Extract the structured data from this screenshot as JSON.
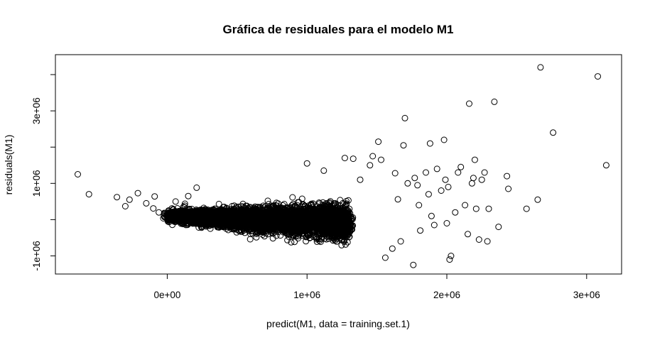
{
  "chart_data": {
    "type": "scatter",
    "title": "Gráfica de residuales para el modelo M1",
    "xlabel": "predict(M1, data = training.set.1)",
    "ylabel": "residuals(M1)",
    "xlim": [
      -800000,
      3250000
    ],
    "ylim": [
      -1500000,
      4550000
    ],
    "x_ticks": [
      {
        "value": 0,
        "label": "0e+00"
      },
      {
        "value": 1000000,
        "label": "1e+06"
      },
      {
        "value": 2000000,
        "label": "2e+06"
      },
      {
        "value": 3000000,
        "label": "3e+06"
      }
    ],
    "y_ticks": [
      {
        "value": -1000000,
        "label": "-1e+06"
      },
      {
        "value": 1000000,
        "label": "1e+06"
      },
      {
        "value": 3000000,
        "label": "3e+06"
      }
    ],
    "y_minor_ticks": [
      0,
      2000000,
      4000000
    ],
    "grid": false,
    "legend": "none",
    "series": [
      {
        "marker": "open-circle",
        "dense_band": {
          "x_start": 0,
          "x_end": 1300000,
          "y_center_start": 100000,
          "y_center_end": -80000,
          "y_spread_start": 140000,
          "y_spread_end": 450000,
          "approx_count": 6000
        },
        "points": [
          {
            "x": -640000,
            "y": 1250000
          },
          {
            "x": -560000,
            "y": 700000
          },
          {
            "x": -360000,
            "y": 620000
          },
          {
            "x": -300000,
            "y": 370000
          },
          {
            "x": -270000,
            "y": 550000
          },
          {
            "x": -210000,
            "y": 730000
          },
          {
            "x": -150000,
            "y": 450000
          },
          {
            "x": -100000,
            "y": 310000
          },
          {
            "x": -90000,
            "y": 640000
          },
          {
            "x": -60000,
            "y": 200000
          },
          {
            "x": 60000,
            "y": 500000
          },
          {
            "x": 150000,
            "y": 650000
          },
          {
            "x": 210000,
            "y": 880000
          },
          {
            "x": 1000000,
            "y": 1550000
          },
          {
            "x": 1120000,
            "y": 1350000
          },
          {
            "x": 1270000,
            "y": 1700000
          },
          {
            "x": 1330000,
            "y": 1680000
          },
          {
            "x": 1380000,
            "y": 1100000
          },
          {
            "x": 1450000,
            "y": 1500000
          },
          {
            "x": 1470000,
            "y": 1750000
          },
          {
            "x": 1510000,
            "y": 2150000
          },
          {
            "x": 1530000,
            "y": 1650000
          },
          {
            "x": 1560000,
            "y": -1050000
          },
          {
            "x": 1610000,
            "y": -800000
          },
          {
            "x": 1630000,
            "y": 1280000
          },
          {
            "x": 1650000,
            "y": 560000
          },
          {
            "x": 1670000,
            "y": -600000
          },
          {
            "x": 1690000,
            "y": 2050000
          },
          {
            "x": 1700000,
            "y": 2800000
          },
          {
            "x": 1720000,
            "y": 1000000
          },
          {
            "x": 1760000,
            "y": -1250000
          },
          {
            "x": 1770000,
            "y": 1150000
          },
          {
            "x": 1790000,
            "y": 950000
          },
          {
            "x": 1800000,
            "y": 400000
          },
          {
            "x": 1810000,
            "y": -300000
          },
          {
            "x": 1850000,
            "y": 1300000
          },
          {
            "x": 1870000,
            "y": 700000
          },
          {
            "x": 1880000,
            "y": 2100000
          },
          {
            "x": 1890000,
            "y": 100000
          },
          {
            "x": 1910000,
            "y": -150000
          },
          {
            "x": 1930000,
            "y": 1400000
          },
          {
            "x": 1960000,
            "y": 800000
          },
          {
            "x": 1980000,
            "y": 2200000
          },
          {
            "x": 1990000,
            "y": 1100000
          },
          {
            "x": 2000000,
            "y": -100000
          },
          {
            "x": 2010000,
            "y": 900000
          },
          {
            "x": 2020000,
            "y": -1100000
          },
          {
            "x": 2030000,
            "y": -1000000
          },
          {
            "x": 2060000,
            "y": 200000
          },
          {
            "x": 2080000,
            "y": 1300000
          },
          {
            "x": 2100000,
            "y": 1450000
          },
          {
            "x": 2130000,
            "y": 400000
          },
          {
            "x": 2150000,
            "y": -400000
          },
          {
            "x": 2160000,
            "y": 3200000
          },
          {
            "x": 2180000,
            "y": 1000000
          },
          {
            "x": 2190000,
            "y": 1150000
          },
          {
            "x": 2200000,
            "y": 1650000
          },
          {
            "x": 2210000,
            "y": 300000
          },
          {
            "x": 2230000,
            "y": -550000
          },
          {
            "x": 2250000,
            "y": 1100000
          },
          {
            "x": 2270000,
            "y": 1300000
          },
          {
            "x": 2290000,
            "y": -600000
          },
          {
            "x": 2300000,
            "y": 300000
          },
          {
            "x": 2340000,
            "y": 3250000
          },
          {
            "x": 2370000,
            "y": -200000
          },
          {
            "x": 2430000,
            "y": 1200000
          },
          {
            "x": 2440000,
            "y": 850000
          },
          {
            "x": 2570000,
            "y": 300000
          },
          {
            "x": 2650000,
            "y": 550000
          },
          {
            "x": 2670000,
            "y": 4200000
          },
          {
            "x": 2760000,
            "y": 2400000
          },
          {
            "x": 3080000,
            "y": 3950000
          },
          {
            "x": 3140000,
            "y": 1500000
          }
        ]
      }
    ]
  }
}
